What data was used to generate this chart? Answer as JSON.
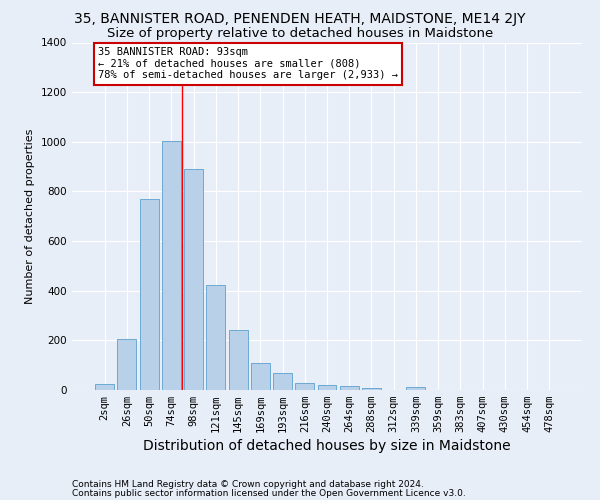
{
  "title": "35, BANNISTER ROAD, PENENDEN HEATH, MAIDSTONE, ME14 2JY",
  "subtitle": "Size of property relative to detached houses in Maidstone",
  "xlabel": "Distribution of detached houses by size in Maidstone",
  "ylabel": "Number of detached properties",
  "footer_line1": "Contains HM Land Registry data © Crown copyright and database right 2024.",
  "footer_line2": "Contains public sector information licensed under the Open Government Licence v3.0.",
  "bar_labels": [
    "2sqm",
    "26sqm",
    "50sqm",
    "74sqm",
    "98sqm",
    "121sqm",
    "145sqm",
    "169sqm",
    "193sqm",
    "216sqm",
    "240sqm",
    "264sqm",
    "288sqm",
    "312sqm",
    "339sqm",
    "359sqm",
    "383sqm",
    "407sqm",
    "430sqm",
    "454sqm",
    "478sqm"
  ],
  "bar_values": [
    25,
    205,
    770,
    1005,
    890,
    425,
    240,
    110,
    70,
    27,
    22,
    15,
    10,
    0,
    12,
    0,
    0,
    0,
    0,
    0,
    0
  ],
  "bar_color": "#b8d0e8",
  "bar_edgecolor": "#6aaad4",
  "vline_x": 3.5,
  "annotation_text": "35 BANNISTER ROAD: 93sqm\n← 21% of detached houses are smaller (808)\n78% of semi-detached houses are larger (2,933) →",
  "annotation_box_color": "#ffffff",
  "annotation_box_edgecolor": "#cc0000",
  "ylim": [
    0,
    1400
  ],
  "yticks": [
    0,
    200,
    400,
    600,
    800,
    1000,
    1200,
    1400
  ],
  "background_color": "#e8eef8",
  "grid_color": "#ffffff",
  "title_fontsize": 10,
  "subtitle_fontsize": 9.5,
  "xlabel_fontsize": 10,
  "ylabel_fontsize": 8,
  "tick_fontsize": 7.5,
  "footer_fontsize": 6.5
}
